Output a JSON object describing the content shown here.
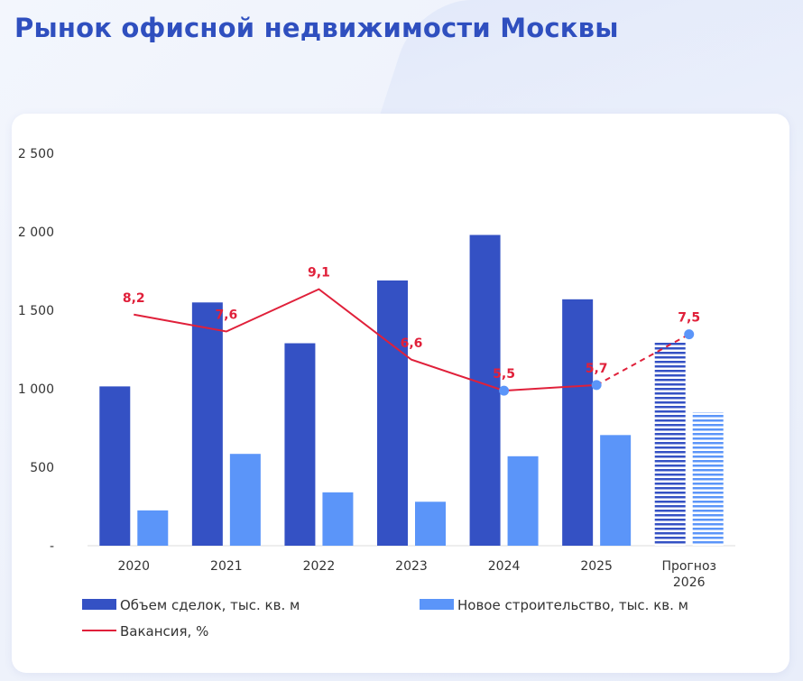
{
  "page": {
    "title": "Рынок офисной недвижимости Москвы"
  },
  "colors": {
    "deals": "#3451c4",
    "construction": "#5b95f9",
    "vacancy": "#e0203a",
    "marker": "#5b95f9"
  },
  "chart_data": {
    "type": "bar",
    "title": "",
    "categories": [
      "2020",
      "2021",
      "2022",
      "2023",
      "2024",
      "2025",
      [
        "Прогноз",
        "2026"
      ]
    ],
    "series": [
      {
        "name": "Объем сделок, тыс. кв. м",
        "type": "bar",
        "values": [
          1015,
          1550,
          1290,
          1690,
          1980,
          1570,
          1300
        ],
        "forecast": [
          false,
          false,
          false,
          false,
          false,
          false,
          true
        ]
      },
      {
        "name": "Новое строительство, тыс. кв. м",
        "type": "bar",
        "values": [
          225,
          585,
          340,
          280,
          570,
          705,
          850
        ],
        "forecast": [
          false,
          false,
          false,
          false,
          false,
          false,
          true
        ]
      },
      {
        "name": "Вакансия, %",
        "type": "line",
        "values": [
          8.2,
          7.6,
          9.1,
          6.6,
          5.5,
          5.7,
          7.5
        ],
        "labels": [
          "8,2",
          "7,6",
          "9,1",
          "6,6",
          "5,5",
          "5,7",
          "7,5"
        ],
        "dashed_from_index": 5,
        "markers_at": [
          4,
          5,
          6
        ]
      }
    ],
    "y_ticks": [
      "-",
      "500",
      "1 000",
      "1 500",
      "2 000",
      "2 500"
    ],
    "ylim": [
      0,
      2500
    ],
    "legend_position": "bottom"
  }
}
